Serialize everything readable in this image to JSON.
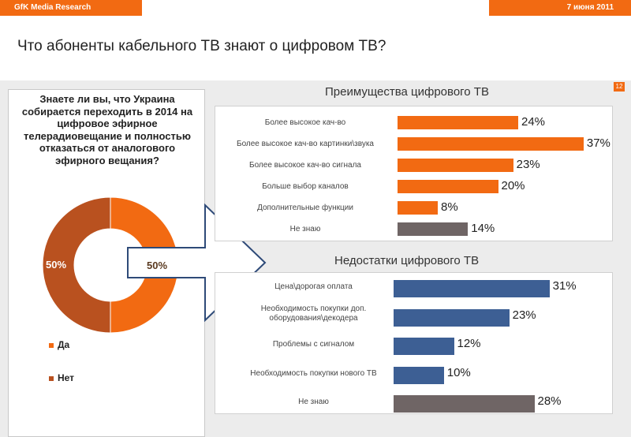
{
  "header": {
    "brand": "GfK Media Research",
    "date": "7 июня 2011",
    "page_number": "12"
  },
  "title": "Что абоненты кабельного ТВ знают о цифровом ТВ?",
  "question": "Знаете ли вы, что Украина собирается переходить в 2014 на цифровое эфирное телерадиовещание и полностью отказаться от аналогового эфирного вещания?",
  "colors": {
    "orange": "#f26a12",
    "brown": "#b9511f",
    "blue": "#3d5f94",
    "gray": "#6f6565"
  },
  "chart_data": [
    {
      "type": "pie",
      "categories": [
        "Да",
        "Нет"
      ],
      "values": [
        50,
        50
      ],
      "data_labels": [
        "50%",
        "50%"
      ],
      "title": "",
      "legend": "bottom-left"
    },
    {
      "type": "bar",
      "title": "Преимущества цифрового ТВ",
      "categories": [
        "Более высокое кач-во",
        "Более высокое кач-во картинки\\звука",
        "Более высокое кач-во сигнала",
        "Больше выбор каналов",
        "Дополнительные функции",
        "Не знаю"
      ],
      "values": [
        24,
        37,
        23,
        20,
        8,
        14
      ],
      "data_labels": [
        "24%",
        "37%",
        "23%",
        "20%",
        "8%",
        "14%"
      ],
      "xlim": [
        0,
        40
      ]
    },
    {
      "type": "bar",
      "title": "Недостатки цифрового ТВ",
      "categories": [
        "Цена\\дорогая оплата",
        "Необходимость покупки доп. оборудования\\декодера",
        "Проблемы с сигналом",
        "Необходимость покупки нового ТВ",
        "Не знаю"
      ],
      "values": [
        31,
        23,
        12,
        10,
        28
      ],
      "data_labels": [
        "31%",
        "23%",
        "12%",
        "10%",
        "28%"
      ],
      "xlim": [
        0,
        40
      ]
    }
  ]
}
